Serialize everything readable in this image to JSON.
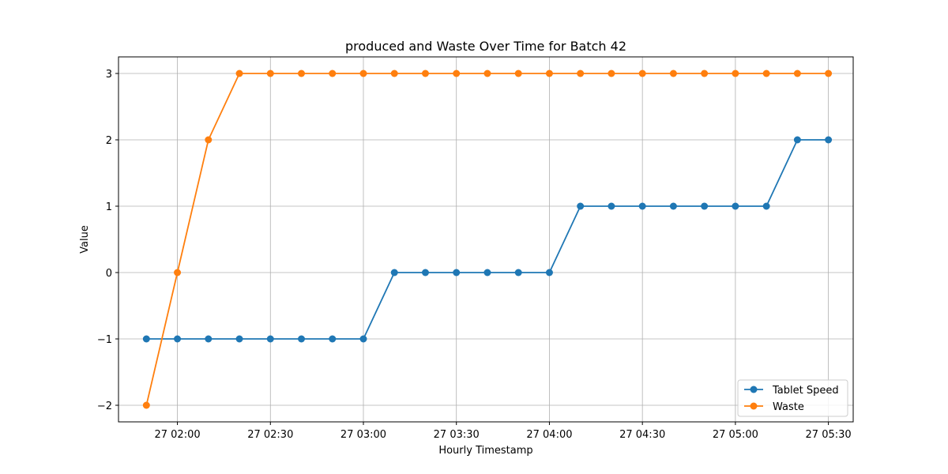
{
  "chart_data": {
    "type": "line",
    "title": "produced and Waste Over Time for Batch 42",
    "xlabel": "Hourly Timestamp",
    "ylabel": "Value",
    "x": [
      "01:50",
      "02:00",
      "02:10",
      "02:20",
      "02:30",
      "02:40",
      "02:50",
      "03:00",
      "03:10",
      "03:20",
      "03:30",
      "03:40",
      "03:50",
      "04:00",
      "04:10",
      "04:20",
      "04:30",
      "04:40",
      "04:50",
      "05:00",
      "05:10",
      "05:20",
      "05:30"
    ],
    "x_ticks": [
      {
        "time": "02:00",
        "label": "27 02:00"
      },
      {
        "time": "02:30",
        "label": "27 02:30"
      },
      {
        "time": "03:00",
        "label": "27 03:00"
      },
      {
        "time": "03:30",
        "label": "27 03:30"
      },
      {
        "time": "04:00",
        "label": "27 04:00"
      },
      {
        "time": "04:30",
        "label": "27 04:30"
      },
      {
        "time": "05:00",
        "label": "27 05:00"
      },
      {
        "time": "05:30",
        "label": "27 05:30"
      }
    ],
    "y_ticks": [
      {
        "value": -2,
        "label": "−2"
      },
      {
        "value": -1,
        "label": "−1"
      },
      {
        "value": 0,
        "label": "0"
      },
      {
        "value": 1,
        "label": "1"
      },
      {
        "value": 2,
        "label": "2"
      },
      {
        "value": 3,
        "label": "3"
      }
    ],
    "xlim": [
      "01:41",
      "05:38"
    ],
    "ylim": [
      -2.25,
      3.25
    ],
    "grid": true,
    "legend_position": "bottom-right",
    "series": [
      {
        "name": "Tablet Speed",
        "color": "#1f77b4",
        "marker": "circle",
        "values": [
          -1,
          -1,
          -1,
          -1,
          -1,
          -1,
          -1,
          -1,
          0,
          0,
          0,
          0,
          0,
          0,
          1,
          1,
          1,
          1,
          1,
          1,
          1,
          2,
          2
        ]
      },
      {
        "name": "Waste",
        "color": "#ff7f0e",
        "marker": "circle",
        "values": [
          -2,
          0,
          2,
          3,
          3,
          3,
          3,
          3,
          3,
          3,
          3,
          3,
          3,
          3,
          3,
          3,
          3,
          3,
          3,
          3,
          3,
          3,
          3
        ]
      }
    ]
  }
}
